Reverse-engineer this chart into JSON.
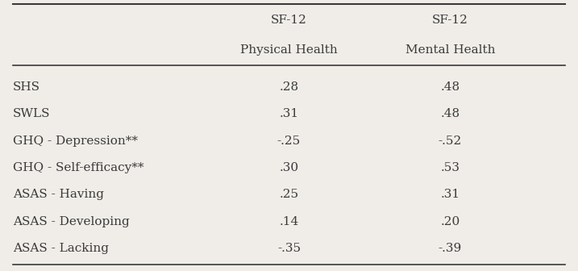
{
  "col_headers": [
    [
      "SF-12",
      "Physical Health"
    ],
    [
      "SF-12",
      "Mental Health"
    ]
  ],
  "row_labels": [
    "SHS",
    "SWLS",
    "GHQ - Depression**",
    "GHQ - Self-efficacy**",
    "ASAS - Having",
    "ASAS - Developing",
    "ASAS - Lacking"
  ],
  "col1_values": [
    ".28",
    ".31",
    "-.25",
    ".30",
    ".25",
    ".14",
    "-.35"
  ],
  "col2_values": [
    ".48",
    ".48",
    "-.52",
    ".53",
    ".31",
    ".20",
    "-.39"
  ],
  "bg_color": "#f0ede8",
  "text_color": "#3a3a3a",
  "font_size": 11,
  "header_font_size": 11
}
